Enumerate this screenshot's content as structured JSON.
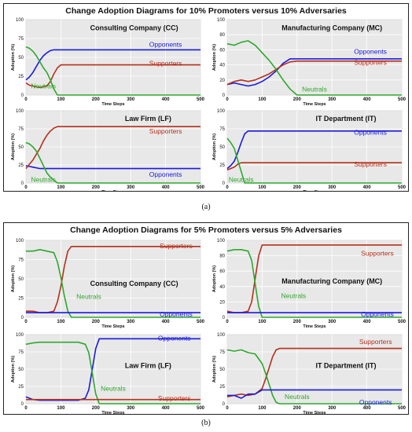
{
  "figures": [
    {
      "title": "Change Adoption Diagrams   for    10% Promoters versus 10% Adversaries",
      "caption": "(a)",
      "panels": [
        {
          "chart_data": {
            "type": "line",
            "title": "Consulting Company (CC)",
            "xlabel": "Time Steps",
            "ylabel": "Adoption (%)",
            "xlim": [
              0,
              500
            ],
            "ylim": [
              0,
              100
            ],
            "xticks": [
              0,
              100,
              200,
              300,
              400,
              500
            ],
            "yticks": [
              0,
              25,
              50,
              75,
              100
            ],
            "grid": true,
            "series": [
              {
                "name": "Opponents",
                "color": "#1a1adf",
                "x": [
                  0,
                  10,
                  20,
                  30,
                  40,
                  50,
                  60,
                  70,
                  80,
                  500
                ],
                "y": [
                  20,
                  24,
                  30,
                  38,
                  46,
                  52,
                  56,
                  59,
                  60,
                  60
                ]
              },
              {
                "name": "Supporters",
                "color": "#b5301c",
                "x": [
                  0,
                  10,
                  20,
                  40,
                  60,
                  70,
                  80,
                  90,
                  100,
                  500
                ],
                "y": [
                  16,
                  13,
                  12,
                  10,
                  12,
                  18,
                  28,
                  36,
                  40,
                  40
                ]
              },
              {
                "name": "Neutrals",
                "color": "#2da82d",
                "x": [
                  0,
                  10,
                  20,
                  30,
                  40,
                  50,
                  60,
                  70,
                  80,
                  90,
                  500
                ],
                "y": [
                  64,
                  62,
                  58,
                  52,
                  44,
                  36,
                  30,
                  20,
                  8,
                  0,
                  0
                ]
              }
            ]
          }
        },
        {
          "chart_data": {
            "type": "line",
            "title": "Manufacturing Company (MC)",
            "xlabel": "Time Steps",
            "ylabel": "Adoption (%)",
            "xlim": [
              0,
              500
            ],
            "ylim": [
              0,
              100
            ],
            "xticks": [
              0,
              100,
              200,
              300,
              400,
              500
            ],
            "yticks": [
              0,
              20,
              40,
              60,
              80,
              100
            ],
            "grid": true,
            "series": [
              {
                "name": "Opponents",
                "color": "#1a1adf",
                "x": [
                  0,
                  20,
                  40,
                  60,
                  80,
                  100,
                  120,
                  140,
                  160,
                  180,
                  500
                ],
                "y": [
                  14,
                  16,
                  14,
                  12,
                  14,
                  18,
                  24,
                  32,
                  42,
                  48,
                  48
                ]
              },
              {
                "name": "Supporters",
                "color": "#b5301c",
                "x": [
                  0,
                  20,
                  40,
                  60,
                  80,
                  100,
                  120,
                  140,
                  160,
                  180,
                  200,
                  500
                ],
                "y": [
                  14,
                  18,
                  20,
                  18,
                  20,
                  24,
                  28,
                  34,
                  40,
                  44,
                  45,
                  45
                ]
              },
              {
                "name": "Neutrals",
                "color": "#2da82d",
                "x": [
                  0,
                  20,
                  40,
                  60,
                  80,
                  100,
                  120,
                  140,
                  160,
                  180,
                  200,
                  500
                ],
                "y": [
                  68,
                  66,
                  70,
                  72,
                  66,
                  56,
                  46,
                  34,
                  20,
                  8,
                  0,
                  0
                ]
              }
            ]
          }
        },
        {
          "chart_data": {
            "type": "line",
            "title": "Law Firm (LF)",
            "xlabel": "Time Steps",
            "ylabel": "Adoption (%)",
            "xlim": [
              0,
              500
            ],
            "ylim": [
              0,
              100
            ],
            "xticks": [
              0,
              100,
              200,
              300,
              400,
              500
            ],
            "yticks": [
              0,
              25,
              50,
              75,
              100
            ],
            "grid": true,
            "series": [
              {
                "name": "Opponents",
                "color": "#1a1adf",
                "x": [
                  0,
                  20,
                  40,
                  60,
                  80,
                  500
                ],
                "y": [
                  24,
                  22,
                  20,
                  20,
                  20,
                  20
                ]
              },
              {
                "name": "Supporters",
                "color": "#b5301c",
                "x": [
                  0,
                  10,
                  20,
                  30,
                  40,
                  50,
                  60,
                  70,
                  80,
                  90,
                  500
                ],
                "y": [
                  20,
                  26,
                  32,
                  40,
                  48,
                  58,
                  66,
                  72,
                  76,
                  78,
                  78
                ]
              },
              {
                "name": "Neutrals",
                "color": "#2da82d",
                "x": [
                  0,
                  10,
                  20,
                  30,
                  40,
                  50,
                  60,
                  70,
                  80,
                  90,
                  500
                ],
                "y": [
                  56,
                  54,
                  50,
                  44,
                  34,
                  24,
                  14,
                  8,
                  4,
                  0,
                  0
                ]
              }
            ]
          }
        },
        {
          "chart_data": {
            "type": "line",
            "title": "IT Department (IT)",
            "xlabel": "Time Steps",
            "ylabel": "Adoption (%)",
            "xlim": [
              0,
              500
            ],
            "ylim": [
              0,
              100
            ],
            "xticks": [
              0,
              100,
              200,
              300,
              400,
              500
            ],
            "yticks": [
              0,
              25,
              50,
              75,
              100
            ],
            "grid": true,
            "series": [
              {
                "name": "Opponents",
                "color": "#1a1adf",
                "x": [
                  0,
                  10,
                  20,
                  30,
                  40,
                  50,
                  60,
                  500
                ],
                "y": [
                  20,
                  24,
                  30,
                  42,
                  56,
                  68,
                  72,
                  72
                ]
              },
              {
                "name": "Supporters",
                "color": "#b5301c",
                "x": [
                  0,
                  10,
                  20,
                  30,
                  40,
                  50,
                  500
                ],
                "y": [
                  18,
                  20,
                  22,
                  26,
                  28,
                  28,
                  28
                ]
              },
              {
                "name": "Neutrals",
                "color": "#2da82d",
                "x": [
                  0,
                  10,
                  20,
                  30,
                  40,
                  50,
                  500
                ],
                "y": [
                  62,
                  56,
                  48,
                  32,
                  16,
                  0,
                  0
                ]
              }
            ]
          }
        }
      ]
    },
    {
      "title": "Change Adoption Diagrams   for    5% Promoters versus 5% Adversaries",
      "caption": "(b)",
      "panels": [
        {
          "chart_data": {
            "type": "line",
            "title": "Consulting Company (CC)",
            "xlabel": "Time Steps",
            "ylabel": "Adoption (%)",
            "xlim": [
              0,
              500
            ],
            "ylim": [
              0,
              100
            ],
            "xticks": [
              0,
              100,
              200,
              300,
              400,
              500
            ],
            "yticks": [
              0,
              25,
              50,
              75,
              100
            ],
            "grid": true,
            "series": [
              {
                "name": "Supporters",
                "color": "#b5301c",
                "x": [
                  0,
                  20,
                  40,
                  60,
                  80,
                  90,
                  100,
                  110,
                  120,
                  130,
                  500
                ],
                "y": [
                  8,
                  8,
                  6,
                  6,
                  8,
                  20,
                  40,
                  66,
                  86,
                  92,
                  92
                ]
              },
              {
                "name": "Neutrals",
                "color": "#2da82d",
                "x": [
                  0,
                  20,
                  40,
                  60,
                  80,
                  90,
                  100,
                  110,
                  120,
                  130,
                  500
                ],
                "y": [
                  86,
                  86,
                  88,
                  86,
                  84,
                  72,
                  52,
                  28,
                  8,
                  0,
                  0
                ]
              },
              {
                "name": "Opponents",
                "color": "#1a1adf",
                "x": [
                  0,
                  500
                ],
                "y": [
                  6,
                  6
                ]
              }
            ]
          }
        },
        {
          "chart_data": {
            "type": "line",
            "title": "Manufacturing Company (MC)",
            "xlabel": "Time Steps",
            "ylabel": "Adoption (%)",
            "xlim": [
              0,
              500
            ],
            "ylim": [
              0,
              100
            ],
            "xticks": [
              0,
              100,
              200,
              300,
              400,
              500
            ],
            "yticks": [
              0,
              20,
              40,
              60,
              80,
              100
            ],
            "grid": true,
            "series": [
              {
                "name": "Supporters",
                "color": "#b5301c",
                "x": [
                  0,
                  20,
                  40,
                  60,
                  70,
                  80,
                  90,
                  100,
                  500
                ],
                "y": [
                  8,
                  6,
                  6,
                  8,
                  20,
                  50,
                  80,
                  94,
                  94
                ]
              },
              {
                "name": "Neutrals",
                "color": "#2da82d",
                "x": [
                  0,
                  20,
                  40,
                  60,
                  70,
                  80,
                  90,
                  100,
                  500
                ],
                "y": [
                  86,
                  88,
                  88,
                  86,
                  74,
                  44,
                  14,
                  0,
                  0
                ]
              },
              {
                "name": "Opponents",
                "color": "#1a1adf",
                "x": [
                  0,
                  500
                ],
                "y": [
                  6,
                  6
                ]
              }
            ]
          }
        },
        {
          "chart_data": {
            "type": "line",
            "title": "Law Firm (LF)",
            "xlabel": "Time Steps",
            "ylabel": "Adoption (%)",
            "xlim": [
              0,
              500
            ],
            "ylim": [
              0,
              100
            ],
            "xticks": [
              0,
              100,
              200,
              300,
              400,
              500
            ],
            "yticks": [
              0,
              25,
              50,
              75,
              100
            ],
            "grid": true,
            "series": [
              {
                "name": "Opponents",
                "color": "#1a1adf",
                "x": [
                  0,
                  20,
                  40,
                  100,
                  150,
                  170,
                  180,
                  190,
                  200,
                  210,
                  500
                ],
                "y": [
                  10,
                  6,
                  5,
                  5,
                  5,
                  8,
                  20,
                  50,
                  80,
                  94,
                  94
                ]
              },
              {
                "name": "Neutrals",
                "color": "#2da82d",
                "x": [
                  0,
                  20,
                  40,
                  100,
                  150,
                  170,
                  180,
                  190,
                  200,
                  210,
                  500
                ],
                "y": [
                  86,
                  88,
                  89,
                  89,
                  89,
                  86,
                  74,
                  44,
                  14,
                  0,
                  0
                ]
              },
              {
                "name": "Supporters",
                "color": "#b5301c",
                "x": [
                  0,
                  500
                ],
                "y": [
                  6,
                  6
                ]
              }
            ]
          }
        },
        {
          "chart_data": {
            "type": "line",
            "title": "IT Department (IT)",
            "xlabel": "Time Steps",
            "ylabel": "Adoption (%)",
            "xlim": [
              0,
              500
            ],
            "ylim": [
              0,
              100
            ],
            "xticks": [
              0,
              100,
              200,
              300,
              400,
              500
            ],
            "yticks": [
              0,
              25,
              50,
              75,
              100
            ],
            "grid": true,
            "series": [
              {
                "name": "Supporters",
                "color": "#b5301c",
                "x": [
                  0,
                  20,
                  40,
                  60,
                  80,
                  100,
                  110,
                  120,
                  130,
                  140,
                  150,
                  500
                ],
                "y": [
                  10,
                  12,
                  14,
                  12,
                  14,
                  22,
                  36,
                  52,
                  68,
                  78,
                  80,
                  80
                ]
              },
              {
                "name": "Neutrals",
                "color": "#2da82d",
                "x": [
                  0,
                  20,
                  40,
                  60,
                  80,
                  100,
                  110,
                  120,
                  130,
                  140,
                  150,
                  500
                ],
                "y": [
                  78,
                  76,
                  78,
                  74,
                  72,
                  58,
                  44,
                  28,
                  12,
                  2,
                  0,
                  0
                ]
              },
              {
                "name": "Opponents",
                "color": "#1a1adf",
                "x": [
                  0,
                  20,
                  40,
                  60,
                  80,
                  100,
                  120,
                  140,
                  160,
                  500
                ],
                "y": [
                  12,
                  12,
                  8,
                  14,
                  14,
                  20,
                  20,
                  20,
                  20,
                  20
                ]
              }
            ]
          }
        }
      ]
    }
  ]
}
